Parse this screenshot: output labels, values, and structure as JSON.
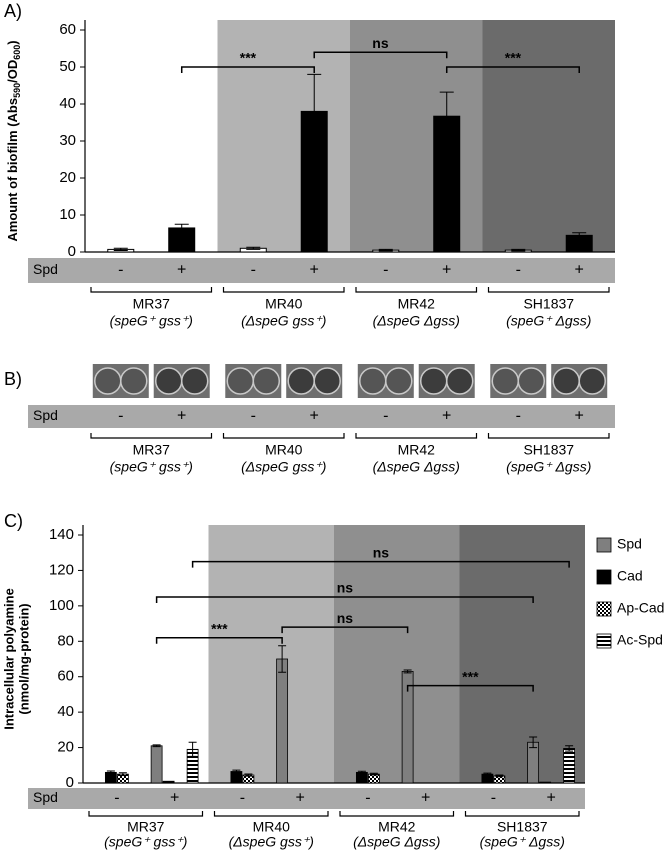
{
  "strains": [
    {
      "name": "MR37",
      "genotype": "(speG⁺ gss⁺)"
    },
    {
      "name": "MR40",
      "genotype": "(ΔspeG gss⁺)"
    },
    {
      "name": "MR42",
      "genotype": "(ΔspeG Δgss)"
    },
    {
      "name": "SH1837",
      "genotype": "(speG⁺ Δgss)"
    }
  ],
  "spd_row": {
    "label": "Spd",
    "conditions": [
      "-",
      "+",
      "-",
      "+",
      "-",
      "+",
      "-",
      "+"
    ]
  },
  "panel_b": {
    "label": "B)"
  },
  "chart_data": [
    {
      "type": "bar",
      "panel_label": "A)",
      "ylabel": [
        "Amount of biofilm (Abs",
        "590",
        "/OD",
        "600",
        ")"
      ],
      "ylim": [
        0,
        60
      ],
      "yticks": [
        0,
        10,
        20,
        30,
        40,
        50,
        60
      ],
      "backgrounds": [
        "#ffffff",
        "#b3b3b3",
        "#8f8f8f",
        "#6b6b6b"
      ],
      "bar_colors": [
        "#ffffff",
        "#000000"
      ],
      "values": [
        0.7,
        6.5,
        1.0,
        38,
        0.5,
        36.7,
        0.5,
        4.5
      ],
      "errors": [
        0.3,
        1.0,
        0.3,
        10,
        0.2,
        6.5,
        0.2,
        0.7
      ],
      "brackets": [
        {
          "label": "***",
          "from": 1,
          "to": 3,
          "y": 50
        },
        {
          "label": "ns",
          "from": 3,
          "to": 5,
          "y": 54
        },
        {
          "label": "***",
          "from": 5,
          "to": 7,
          "y": 50
        }
      ]
    },
    {
      "type": "grouped_bar",
      "panel_label": "C)",
      "ylabel": [
        "Intracellular polyamine",
        "(nmol/mg-protein)"
      ],
      "ylim": [
        0,
        140
      ],
      "yticks": [
        0,
        20,
        40,
        60,
        80,
        100,
        120,
        140
      ],
      "backgrounds": [
        "#ffffff",
        "#b3b3b3",
        "#8f8f8f",
        "#6b6b6b"
      ],
      "series": [
        {
          "name": "Spd",
          "color": "#7f7f7f",
          "pattern": "solid",
          "values": [
            0,
            21,
            0,
            70,
            0,
            63,
            0,
            23
          ],
          "errors": [
            null,
            0.5,
            null,
            7.5,
            null,
            0.8,
            null,
            3
          ]
        },
        {
          "name": "Cad",
          "color": "#000000",
          "pattern": "solid",
          "values": [
            6,
            1,
            6.5,
            0,
            6,
            0,
            5,
            0.5
          ],
          "errors": [
            0.8,
            null,
            0.8,
            null,
            0.6,
            null,
            0.6,
            null
          ]
        },
        {
          "name": "Ap-Cad",
          "color": "#ffffff",
          "pattern": "checker",
          "values": [
            5,
            0,
            4.5,
            0,
            5,
            0,
            4,
            0
          ],
          "errors": [
            0.8,
            null,
            0.6,
            null,
            0.5,
            null,
            0.5,
            null
          ]
        },
        {
          "name": "Ac-Spd",
          "color": "#ffffff",
          "pattern": "stripes",
          "values": [
            0,
            19,
            0,
            0,
            0,
            0,
            0,
            19.5
          ],
          "errors": [
            null,
            4,
            null,
            null,
            null,
            null,
            null,
            1.5
          ]
        }
      ],
      "brackets": [
        {
          "label": "***",
          "from": [
            1,
            0
          ],
          "to": [
            3,
            0
          ],
          "y": 82
        },
        {
          "label": "ns",
          "from": [
            3,
            0
          ],
          "to": [
            5,
            0
          ],
          "y": 88
        },
        {
          "label": "***",
          "from": [
            5,
            0
          ],
          "to": [
            7,
            0
          ],
          "y": 55
        },
        {
          "label": "ns",
          "from": [
            1,
            0
          ],
          "to": [
            7,
            0
          ],
          "y": 105
        },
        {
          "label": "ns",
          "from": [
            1,
            3
          ],
          "to": [
            7,
            3
          ],
          "y": 125
        }
      ]
    }
  ]
}
